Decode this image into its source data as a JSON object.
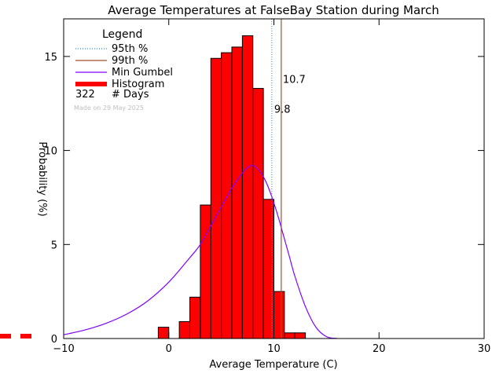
{
  "chart_data": {
    "type": "bar",
    "title": "Average Temperatures at FalseBay Station during March",
    "xlabel": "Average Temperature (C)",
    "ylabel": "Probability (%)",
    "xlim": [
      -10,
      30
    ],
    "ylim": [
      0,
      17
    ],
    "x_ticks": [
      -10,
      0,
      10,
      20,
      30
    ],
    "y_ticks": [
      0,
      5,
      10,
      15
    ],
    "histogram": {
      "bin_width": 1,
      "bin_starts": [
        -1,
        0,
        1,
        2,
        3,
        4,
        5,
        6,
        7,
        8,
        9,
        10,
        11,
        12
      ],
      "values": [
        0.6,
        0.0,
        0.9,
        2.2,
        7.1,
        14.9,
        15.2,
        15.5,
        16.1,
        13.3,
        7.4,
        2.5,
        0.3,
        0.3
      ],
      "color": "#ff0000"
    },
    "gumbel_curve": {
      "x": [
        -10,
        -8,
        -6,
        -4,
        -2,
        0,
        2,
        3,
        4,
        5,
        6,
        7,
        7.5,
        8,
        8.5,
        9,
        9.5,
        10,
        10.5,
        11,
        11.5,
        12,
        13,
        14,
        15,
        16
      ],
      "y": [
        0.2,
        0.45,
        0.8,
        1.3,
        2.0,
        3.0,
        4.3,
        5.0,
        6.0,
        7.0,
        8.0,
        8.8,
        9.1,
        9.2,
        9.0,
        8.6,
        8.0,
        7.2,
        6.3,
        5.3,
        4.3,
        3.3,
        1.7,
        0.6,
        0.1,
        0.0
      ],
      "color": "#8000ff"
    },
    "percentile_95": {
      "value": 9.8,
      "label": "9.8",
      "color": "#1e90ff"
    },
    "percentile_99": {
      "value": 10.7,
      "label": "10.7",
      "color": "#a0522d"
    },
    "legend": {
      "title": "Legend",
      "items": [
        {
          "label": "95th %",
          "style": "dotted",
          "color": "#1e90ff"
        },
        {
          "label": "99th %",
          "style": "solid",
          "color": "#a0522d"
        },
        {
          "label": "Min Gumbel",
          "style": "solid",
          "color": "#8000ff"
        },
        {
          "label": "Histogram",
          "style": "thick",
          "color": "#ff0000"
        }
      ],
      "days_count": "322",
      "days_label": "# Days",
      "made_on": "Made on 29 May 2025"
    }
  }
}
